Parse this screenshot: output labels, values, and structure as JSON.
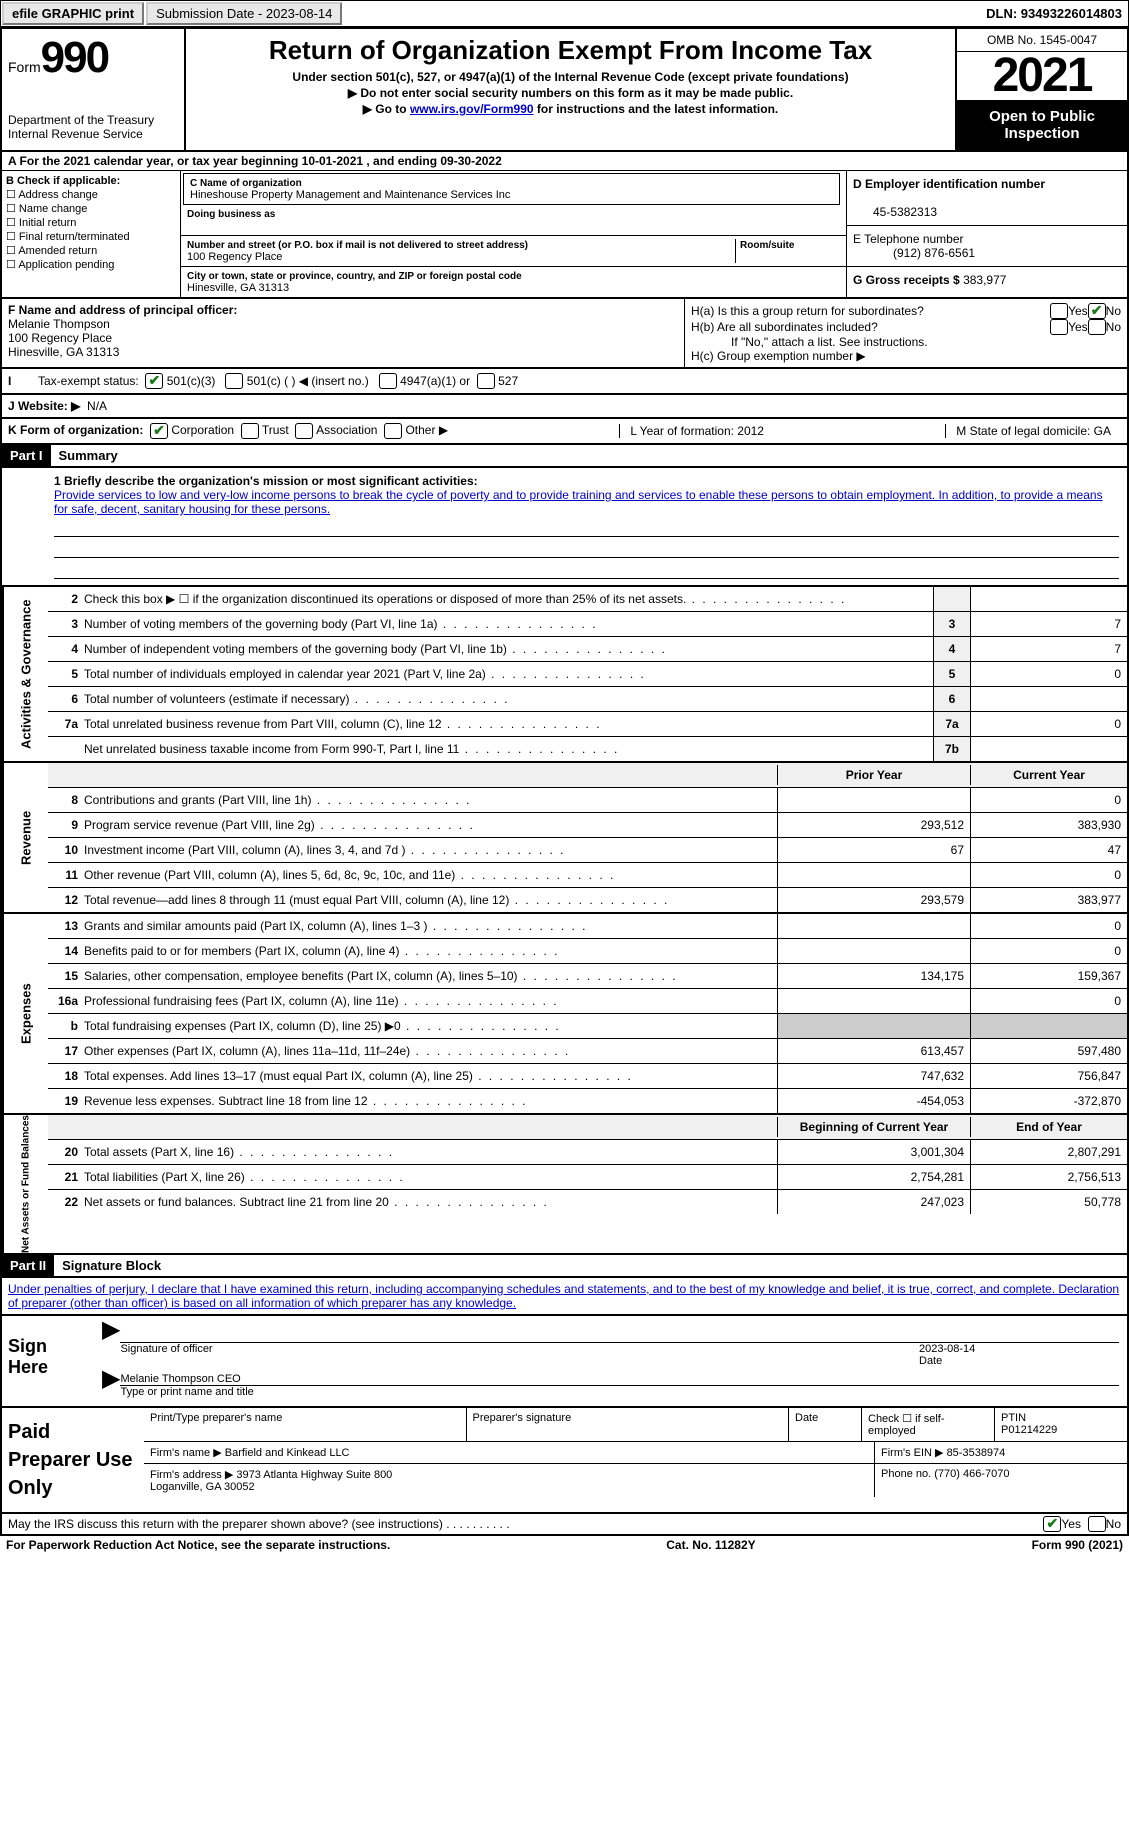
{
  "topbar": {
    "btn1": "efile GRAPHIC print",
    "sub_label": "Submission Date - 2023-08-14",
    "dln": "DLN: 93493226014803"
  },
  "header": {
    "form_prefix": "Form",
    "form_num": "990",
    "dept": "Department of the Treasury\nInternal Revenue Service",
    "title": "Return of Organization Exempt From Income Tax",
    "sub1": "Under section 501(c), 527, or 4947(a)(1) of the Internal Revenue Code (except private foundations)",
    "sub2": "▶ Do not enter social security numbers on this form as it may be made public.",
    "sub3_pre": "▶ Go to ",
    "sub3_link": "www.irs.gov/Form990",
    "sub3_post": " for instructions and the latest information.",
    "omb": "OMB No. 1545-0047",
    "year": "2021",
    "open_pub": "Open to Public Inspection"
  },
  "row_a": "A For the 2021 calendar year, or tax year beginning 10-01-2021    , and ending 09-30-2022",
  "box_b": {
    "title": "B Check if applicable:",
    "opts": [
      "Address change",
      "Name change",
      "Initial return",
      "Final return/terminated",
      "Amended return",
      "Application pending"
    ]
  },
  "box_c": {
    "name_label": "C Name of organization",
    "name": "Hineshouse Property Management and Maintenance Services Inc",
    "dba_label": "Doing business as",
    "addr_label": "Number and street (or P.O. box if mail is not delivered to street address)",
    "addr": "100 Regency Place",
    "room_label": "Room/suite",
    "city_label": "City or town, state or province, country, and ZIP or foreign postal code",
    "city": "Hinesville, GA  31313"
  },
  "box_d": {
    "ein_label": "D Employer identification number",
    "ein": "45-5382313",
    "phone_label": "E Telephone number",
    "phone": "(912) 876-6561",
    "gross_label": "G Gross receipts $ ",
    "gross": "383,977"
  },
  "box_f": {
    "label": "F  Name and address of principal officer:",
    "name": "Melanie Thompson",
    "addr1": "100 Regency Place",
    "addr2": "Hinesville, GA  31313"
  },
  "box_h": {
    "ha": "H(a)  Is this a group return for subordinates?",
    "hb": "H(b)  Are all subordinates included?",
    "hb_note": "If \"No,\" attach a list. See instructions.",
    "hc": "H(c)  Group exemption number ▶"
  },
  "status": {
    "label": "Tax-exempt status:",
    "o1": "501(c)(3)",
    "o2": "501(c) (  ) ◀ (insert no.)",
    "o3": "4947(a)(1) or",
    "o4": "527"
  },
  "website": {
    "label": "J   Website: ▶",
    "val": "N/A"
  },
  "k": {
    "label": "K Form of organization:",
    "opts": [
      "Corporation",
      "Trust",
      "Association",
      "Other ▶"
    ],
    "l": "L Year of formation: 2012",
    "m": "M State of legal domicile: GA"
  },
  "parts": {
    "p1": "Part I",
    "p1_title": "Summary",
    "p2": "Part II",
    "p2_title": "Signature Block"
  },
  "mission": {
    "label": "1   Briefly describe the organization's mission or most significant activities:",
    "text": "Provide services to low and very-low income persons to break the cycle of poverty and to provide training and services to enable these persons to obtain employment. In addition, to provide a means for safe, decent, sanitary housing for these persons."
  },
  "side": {
    "ag": "Activities & Governance",
    "rev": "Revenue",
    "exp": "Expenses",
    "net": "Net Assets or Fund Balances"
  },
  "lines_ag": [
    {
      "n": "2",
      "t": "Check this box ▶ ☐  if the organization discontinued its operations or disposed of more than 25% of its net assets.",
      "nb": "",
      "v": ""
    },
    {
      "n": "3",
      "t": "Number of voting members of the governing body (Part VI, line 1a)",
      "nb": "3",
      "v": "7"
    },
    {
      "n": "4",
      "t": "Number of independent voting members of the governing body (Part VI, line 1b)",
      "nb": "4",
      "v": "7"
    },
    {
      "n": "5",
      "t": "Total number of individuals employed in calendar year 2021 (Part V, line 2a)",
      "nb": "5",
      "v": "0"
    },
    {
      "n": "6",
      "t": "Total number of volunteers (estimate if necessary)",
      "nb": "6",
      "v": ""
    },
    {
      "n": "7a",
      "t": "Total unrelated business revenue from Part VIII, column (C), line 12",
      "nb": "7a",
      "v": "0"
    },
    {
      "n": "",
      "t": "Net unrelated business taxable income from Form 990-T, Part I, line 11",
      "nb": "7b",
      "v": ""
    }
  ],
  "col_headers": {
    "prior": "Prior Year",
    "current": "Current Year",
    "beg": "Beginning of Current Year",
    "end": "End of Year"
  },
  "lines_rev": [
    {
      "n": "8",
      "t": "Contributions and grants (Part VIII, line 1h)",
      "p": "",
      "c": "0"
    },
    {
      "n": "9",
      "t": "Program service revenue (Part VIII, line 2g)",
      "p": "293,512",
      "c": "383,930"
    },
    {
      "n": "10",
      "t": "Investment income (Part VIII, column (A), lines 3, 4, and 7d )",
      "p": "67",
      "c": "47"
    },
    {
      "n": "11",
      "t": "Other revenue (Part VIII, column (A), lines 5, 6d, 8c, 9c, 10c, and 11e)",
      "p": "",
      "c": "0"
    },
    {
      "n": "12",
      "t": "Total revenue—add lines 8 through 11 (must equal Part VIII, column (A), line 12)",
      "p": "293,579",
      "c": "383,977"
    }
  ],
  "lines_exp": [
    {
      "n": "13",
      "t": "Grants and similar amounts paid (Part IX, column (A), lines 1–3 )",
      "p": "",
      "c": "0"
    },
    {
      "n": "14",
      "t": "Benefits paid to or for members (Part IX, column (A), line 4)",
      "p": "",
      "c": "0"
    },
    {
      "n": "15",
      "t": "Salaries, other compensation, employee benefits (Part IX, column (A), lines 5–10)",
      "p": "134,175",
      "c": "159,367"
    },
    {
      "n": "16a",
      "t": "Professional fundraising fees (Part IX, column (A), line 11e)",
      "p": "",
      "c": "0"
    },
    {
      "n": "b",
      "t": "Total fundraising expenses (Part IX, column (D), line 25) ▶0",
      "p": "SHADE",
      "c": "SHADE"
    },
    {
      "n": "17",
      "t": "Other expenses (Part IX, column (A), lines 11a–11d, 11f–24e)",
      "p": "613,457",
      "c": "597,480"
    },
    {
      "n": "18",
      "t": "Total expenses. Add lines 13–17 (must equal Part IX, column (A), line 25)",
      "p": "747,632",
      "c": "756,847"
    },
    {
      "n": "19",
      "t": "Revenue less expenses. Subtract line 18 from line 12",
      "p": "-454,053",
      "c": "-372,870"
    }
  ],
  "lines_net": [
    {
      "n": "20",
      "t": "Total assets (Part X, line 16)",
      "p": "3,001,304",
      "c": "2,807,291"
    },
    {
      "n": "21",
      "t": "Total liabilities (Part X, line 26)",
      "p": "2,754,281",
      "c": "2,756,513"
    },
    {
      "n": "22",
      "t": "Net assets or fund balances. Subtract line 21 from line 20",
      "p": "247,023",
      "c": "50,778"
    }
  ],
  "sig": {
    "penalty": "Under penalties of perjury, I declare that I have examined this return, including accompanying schedules and statements, and to the best of my knowledge and belief, it is true, correct, and complete. Declaration of preparer (other than officer) is based on all information of which preparer has any knowledge.",
    "sign_here": "Sign Here",
    "sig_of": "Signature of officer",
    "date": "2023-08-14",
    "date_lbl": "Date",
    "name": "Melanie Thompson CEO",
    "name_lbl": "Type or print name and title"
  },
  "paid": {
    "label": "Paid Preparer Use Only",
    "h1": "Print/Type preparer's name",
    "h2": "Preparer's signature",
    "h3": "Date",
    "h4_pre": "Check ☐ if self-employed",
    "h5": "PTIN",
    "ptin": "P01214229",
    "firm_name_lbl": "Firm's name      ▶",
    "firm_name": "Barfield and Kinkead LLC",
    "firm_ein_lbl": "Firm's EIN ▶",
    "firm_ein": "85-3538974",
    "firm_addr_lbl": "Firm's address ▶",
    "firm_addr": "3973 Atlanta Highway Suite 800\nLoganville, GA  30052",
    "phone_lbl": "Phone no.",
    "phone": "(770) 466-7070"
  },
  "footer": {
    "q": "May the IRS discuss this return with the preparer shown above? (see instructions)",
    "yes": "Yes",
    "no": "No",
    "pra": "For Paperwork Reduction Act Notice, see the separate instructions.",
    "cat": "Cat. No. 11282Y",
    "form": "Form 990 (2021)"
  }
}
